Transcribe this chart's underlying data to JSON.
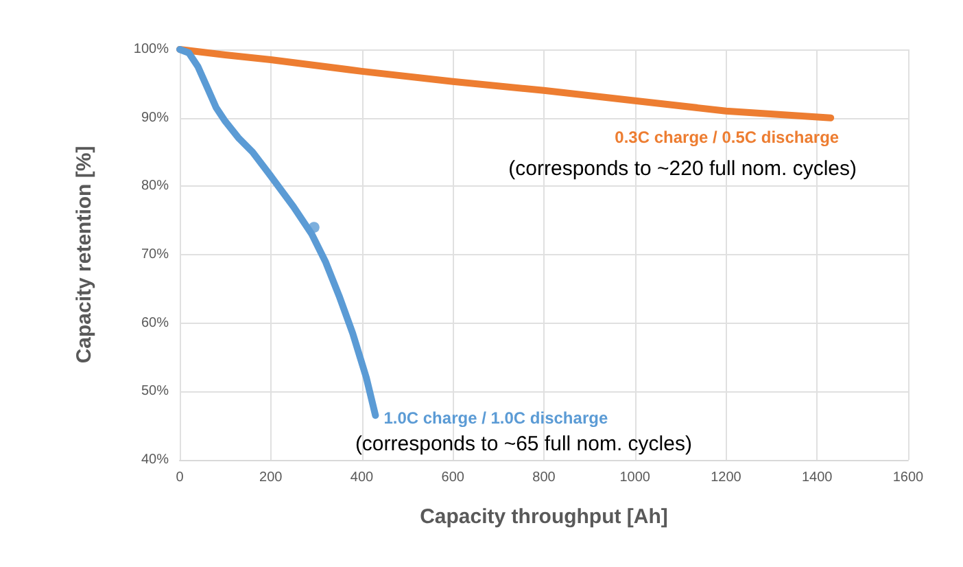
{
  "chart_data": {
    "type": "line",
    "xlabel": "Capacity throughput [Ah]",
    "ylabel": "Capacity retention [%]",
    "xlim": [
      0,
      1600
    ],
    "xticks": [
      0,
      200,
      400,
      600,
      800,
      1000,
      1200,
      1400,
      1600
    ],
    "ylim": [
      40,
      100
    ],
    "yticks": [
      {
        "value": 40,
        "label": "40%"
      },
      {
        "value": 50,
        "label": "50%"
      },
      {
        "value": 60,
        "label": "60%"
      },
      {
        "value": 70,
        "label": "70%"
      },
      {
        "value": 80,
        "label": "80%"
      },
      {
        "value": 90,
        "label": "90%"
      },
      {
        "value": 100,
        "label": "100%"
      }
    ],
    "grid": true,
    "legend": false,
    "marker": "none",
    "line_style": "solid",
    "series": [
      {
        "name": "0.3C charge / 0.5C discharge",
        "color": "#ed7d31",
        "x": [
          0,
          100,
          200,
          400,
          600,
          800,
          1000,
          1200,
          1430
        ],
        "values": [
          100,
          99.2,
          98.5,
          96.8,
          95.3,
          94,
          92.5,
          91,
          90
        ]
      },
      {
        "name": "1.0C charge / 1.0C discharge",
        "color": "#5b9bd5",
        "x": [
          0,
          20,
          40,
          60,
          80,
          100,
          130,
          160,
          200,
          250,
          290,
          320,
          350,
          380,
          410,
          430
        ],
        "values": [
          100,
          99.5,
          97.5,
          94.5,
          91.5,
          89.5,
          87,
          85,
          81.5,
          77,
          73,
          69,
          64,
          58.5,
          52,
          46.5
        ]
      },
      {
        "type": "scatter",
        "marker": "circle",
        "color": "#5b9bd5",
        "x": [
          295
        ],
        "values": [
          74
        ]
      }
    ],
    "annotations": [
      "(corresponds to ~220 full nom. cycles)",
      "(corresponds to ~65 full nom. cycles)"
    ]
  }
}
